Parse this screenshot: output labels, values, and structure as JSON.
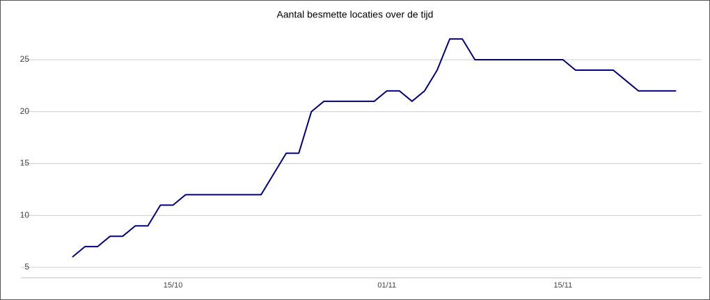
{
  "chart_data": {
    "type": "line",
    "title": "Aantal besmette locaties over de tijd",
    "x": [
      "07/10",
      "08/10",
      "09/10",
      "10/10",
      "11/10",
      "12/10",
      "13/10",
      "14/10",
      "15/10",
      "16/10",
      "17/10",
      "18/10",
      "19/10",
      "20/10",
      "21/10",
      "22/10",
      "23/10",
      "24/10",
      "25/10",
      "26/10",
      "27/10",
      "28/10",
      "29/10",
      "30/10",
      "31/10",
      "01/11",
      "02/11",
      "03/11",
      "04/11",
      "05/11",
      "06/11",
      "07/11",
      "08/11",
      "09/11",
      "10/11",
      "11/11",
      "12/11",
      "13/11",
      "14/11",
      "15/11",
      "16/11",
      "17/11",
      "18/11",
      "19/11",
      "20/11",
      "21/11",
      "22/11",
      "23/11",
      "24/11"
    ],
    "series": [
      {
        "color": "#000080",
        "values": [
          6,
          7,
          7,
          8,
          8,
          9,
          9,
          11,
          11,
          12,
          12,
          12,
          12,
          12,
          12,
          12,
          14,
          16,
          16,
          20,
          21,
          21,
          21,
          21,
          21,
          22,
          22,
          21,
          22,
          24,
          27,
          27,
          25,
          25,
          25,
          25,
          25,
          25,
          25,
          25,
          24,
          24,
          24,
          24,
          23,
          22,
          22,
          22,
          22
        ]
      }
    ],
    "xticks": [
      "15/10",
      "01/11",
      "15/11"
    ],
    "ylim": [
      4,
      28.5
    ],
    "yticks": [
      5,
      10,
      15,
      20,
      25
    ],
    "grid": true
  }
}
